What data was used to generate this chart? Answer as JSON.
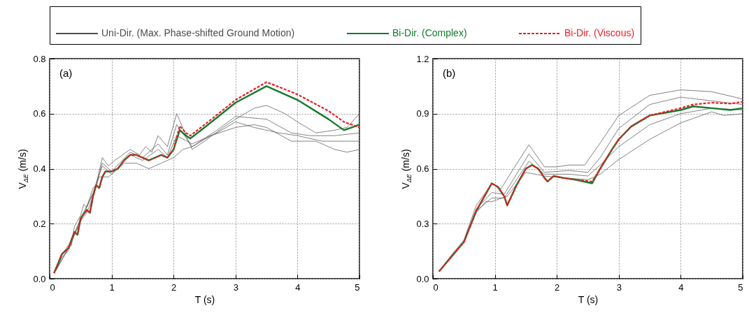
{
  "chart_data": [
    {
      "type": "line",
      "xlabel": "T (s)",
      "ylabel": "V$_{ΔE}$ (m/s)",
      "annotations": [
        "(a)"
      ],
      "xlim": [
        0,
        5
      ],
      "xticks": [
        0,
        1,
        2,
        3,
        4,
        5
      ],
      "ylim": [
        0,
        0.8
      ],
      "yticks": [
        {
          "value": 0,
          "label": "0.0"
        },
        0.2,
        0.4,
        0.6,
        0.8
      ],
      "grid": true,
      "legend": "top",
      "series": [
        {
          "name": "Uni-Dir. (Max. Phase-shifted Ground Motion)",
          "color": "#4d4d4d",
          "x": [
            0.1,
            0.2,
            0.3,
            0.35,
            0.4,
            0.5,
            0.55,
            0.6,
            0.7,
            0.75,
            0.85,
            0.95,
            1.05,
            1.3,
            1.45,
            1.55,
            1.65,
            1.75,
            1.9,
            2.05,
            2.3,
            2.5,
            2.8,
            3.0,
            3.3,
            3.5,
            3.8,
            4.0,
            4.3,
            4.6,
            4.8,
            5.0
          ],
          "values": [
            0.03,
            0.09,
            0.12,
            0.12,
            0.19,
            0.23,
            0.27,
            0.26,
            0.33,
            0.34,
            0.44,
            0.41,
            0.43,
            0.47,
            0.45,
            0.48,
            0.46,
            0.52,
            0.48,
            0.6,
            0.47,
            0.5,
            0.55,
            0.58,
            0.62,
            0.63,
            0.6,
            0.57,
            0.53,
            0.54,
            0.55,
            0.6
          ]
        },
        {
          "color": "#4d4d4d",
          "x": [
            0.1,
            0.2,
            0.3,
            0.4,
            0.5,
            0.6,
            0.7,
            0.8,
            0.95,
            1.1,
            1.2,
            1.4,
            1.6,
            1.8,
            2.0,
            2.15,
            2.3,
            2.6,
            3.0,
            3.3,
            3.5,
            3.9,
            4.3,
            4.6,
            4.8,
            5.0
          ],
          "values": [
            0.03,
            0.08,
            0.1,
            0.16,
            0.21,
            0.24,
            0.3,
            0.37,
            0.37,
            0.4,
            0.42,
            0.42,
            0.4,
            0.42,
            0.44,
            0.47,
            0.48,
            0.52,
            0.55,
            0.56,
            0.55,
            0.5,
            0.5,
            0.47,
            0.46,
            0.47
          ]
        },
        {
          "color": "#4d4d4d",
          "x": [
            0.1,
            0.3,
            0.5,
            0.7,
            0.85,
            1.0,
            1.3,
            1.5,
            1.75,
            1.9,
            2.05,
            2.3,
            2.7,
            3.0,
            3.5,
            3.9,
            4.2,
            4.6,
            5.0
          ],
          "values": [
            0.03,
            0.11,
            0.22,
            0.31,
            0.42,
            0.39,
            0.46,
            0.44,
            0.49,
            0.45,
            0.56,
            0.48,
            0.54,
            0.59,
            0.58,
            0.53,
            0.52,
            0.52,
            0.53
          ]
        },
        {
          "color": "#4d4d4d",
          "x": [
            0.1,
            0.3,
            0.5,
            0.7,
            0.85,
            1.0,
            1.3,
            1.5,
            1.75,
            1.9,
            2.05,
            2.3,
            2.7,
            3.0,
            3.3,
            3.7,
            4.0,
            4.4,
            5.0
          ],
          "values": [
            0.03,
            0.11,
            0.21,
            0.31,
            0.41,
            0.38,
            0.45,
            0.43,
            0.47,
            0.44,
            0.52,
            0.49,
            0.53,
            0.57,
            0.55,
            0.53,
            0.52,
            0.5,
            0.5
          ]
        },
        {
          "name": "Bi-Dir. (Complex)",
          "color": "#137a2e",
          "x": [
            0.07,
            0.2,
            0.3,
            0.4,
            0.45,
            0.5,
            0.6,
            0.65,
            0.7,
            0.75,
            0.8,
            0.85,
            0.9,
            1.0,
            1.1,
            1.2,
            1.3,
            1.4,
            1.5,
            1.6,
            1.7,
            1.8,
            1.9,
            2.0,
            2.1,
            2.2,
            2.27,
            2.5,
            3.0,
            3.5,
            4.0,
            4.5,
            4.75,
            5.0
          ],
          "values": [
            0.02,
            0.09,
            0.11,
            0.17,
            0.16,
            0.22,
            0.25,
            0.24,
            0.3,
            0.34,
            0.33,
            0.37,
            0.39,
            0.39,
            0.4,
            0.43,
            0.45,
            0.45,
            0.44,
            0.43,
            0.44,
            0.45,
            0.44,
            0.47,
            0.54,
            0.52,
            0.51,
            0.55,
            0.64,
            0.7,
            0.65,
            0.58,
            0.54,
            0.56
          ]
        },
        {
          "name": "Bi-Dir. (Viscous)",
          "color": "#ee1c25",
          "line_style": "dashed",
          "x": [
            0.07,
            0.2,
            0.3,
            0.4,
            0.45,
            0.5,
            0.6,
            0.65,
            0.7,
            0.75,
            0.8,
            0.85,
            0.9,
            1.0,
            1.1,
            1.2,
            1.3,
            1.4,
            1.5,
            1.6,
            1.7,
            1.8,
            1.9,
            2.0,
            2.1,
            2.2,
            2.27,
            2.5,
            3.0,
            3.5,
            4.0,
            4.5,
            4.75,
            5.0
          ],
          "values": [
            0.02,
            0.09,
            0.11,
            0.17,
            0.16,
            0.22,
            0.25,
            0.24,
            0.3,
            0.34,
            0.33,
            0.37,
            0.39,
            0.39,
            0.4,
            0.43,
            0.45,
            0.45,
            0.44,
            0.43,
            0.44,
            0.45,
            0.44,
            0.47,
            0.555,
            0.53,
            0.52,
            0.56,
            0.65,
            0.715,
            0.67,
            0.61,
            0.57,
            0.55
          ]
        }
      ]
    },
    {
      "type": "line",
      "xlabel": "T (s)",
      "ylabel": "V$_{ΔE}$ (m/s)",
      "annotations": [
        "(b)"
      ],
      "xlim": [
        0,
        5
      ],
      "xticks": [
        0,
        1,
        2,
        3,
        4,
        5
      ],
      "ylim": [
        0,
        1.2
      ],
      "yticks": [
        {
          "value": 0,
          "label": "0.0"
        },
        0.3,
        0.6,
        0.9,
        1.2
      ],
      "grid": true,
      "series": [
        {
          "color": "#4d4d4d",
          "x": [
            0.1,
            0.3,
            0.5,
            0.7,
            0.85,
            0.95,
            1.1,
            1.3,
            1.55,
            1.8,
            2.0,
            2.2,
            2.45,
            2.7,
            3.0,
            3.5,
            4.0,
            4.5,
            5.0
          ],
          "values": [
            0.04,
            0.13,
            0.21,
            0.4,
            0.47,
            0.52,
            0.49,
            0.6,
            0.73,
            0.61,
            0.61,
            0.62,
            0.62,
            0.74,
            0.89,
            1.0,
            1.03,
            1.02,
            0.98
          ]
        },
        {
          "color": "#4d4d4d",
          "x": [
            0.1,
            0.3,
            0.5,
            0.7,
            0.85,
            0.95,
            1.2,
            1.5,
            1.8,
            2.1,
            2.5,
            2.7,
            3.0,
            3.5,
            4.0,
            4.5,
            4.7,
            5.0
          ],
          "values": [
            0.04,
            0.12,
            0.2,
            0.36,
            0.42,
            0.42,
            0.45,
            0.58,
            0.56,
            0.55,
            0.54,
            0.57,
            0.65,
            0.76,
            0.85,
            0.91,
            0.89,
            0.9
          ]
        },
        {
          "color": "#4d4d4d",
          "x": [
            0.1,
            0.5,
            0.7,
            0.95,
            1.15,
            1.55,
            1.8,
            2.2,
            2.5,
            2.7,
            3.0,
            3.5,
            4.0,
            4.5,
            5.0
          ],
          "values": [
            0.04,
            0.2,
            0.38,
            0.47,
            0.46,
            0.68,
            0.58,
            0.59,
            0.58,
            0.66,
            0.82,
            0.95,
            0.99,
            0.97,
            0.95
          ]
        },
        {
          "color": "#4d4d4d",
          "x": [
            0.1,
            0.5,
            0.7,
            0.95,
            1.15,
            1.55,
            1.8,
            2.2,
            2.5,
            2.7,
            3.0,
            3.5,
            4.0,
            4.5,
            5.0
          ],
          "values": [
            0.04,
            0.2,
            0.37,
            0.44,
            0.44,
            0.64,
            0.57,
            0.57,
            0.56,
            0.62,
            0.72,
            0.84,
            0.9,
            0.93,
            0.92
          ]
        },
        {
          "color": "#137a2e",
          "x": [
            0.1,
            0.3,
            0.5,
            0.7,
            0.8,
            0.95,
            1.05,
            1.15,
            1.2,
            1.35,
            1.5,
            1.6,
            1.7,
            1.8,
            1.85,
            1.95,
            2.1,
            2.3,
            2.57,
            2.7,
            2.9,
            3.0,
            3.2,
            3.5,
            4.0,
            4.2,
            4.5,
            4.8,
            5.0
          ],
          "values": [
            0.04,
            0.12,
            0.2,
            0.37,
            0.43,
            0.52,
            0.5,
            0.45,
            0.4,
            0.51,
            0.6,
            0.62,
            0.6,
            0.55,
            0.53,
            0.56,
            0.55,
            0.54,
            0.52,
            0.6,
            0.71,
            0.76,
            0.83,
            0.89,
            0.92,
            0.94,
            0.93,
            0.92,
            0.93
          ]
        },
        {
          "color": "#ee1c25",
          "line_style": "dashed",
          "x": [
            0.1,
            0.3,
            0.5,
            0.7,
            0.8,
            0.95,
            1.05,
            1.15,
            1.2,
            1.35,
            1.5,
            1.6,
            1.7,
            1.8,
            1.85,
            1.95,
            2.1,
            2.3,
            2.57,
            2.7,
            2.9,
            3.0,
            3.2,
            3.5,
            4.0,
            4.2,
            4.5,
            4.8,
            5.0
          ],
          "values": [
            0.04,
            0.12,
            0.2,
            0.37,
            0.43,
            0.52,
            0.5,
            0.45,
            0.4,
            0.51,
            0.6,
            0.62,
            0.6,
            0.55,
            0.53,
            0.56,
            0.55,
            0.54,
            0.53,
            0.6,
            0.71,
            0.76,
            0.83,
            0.89,
            0.93,
            0.95,
            0.96,
            0.955,
            0.965
          ]
        }
      ]
    }
  ]
}
